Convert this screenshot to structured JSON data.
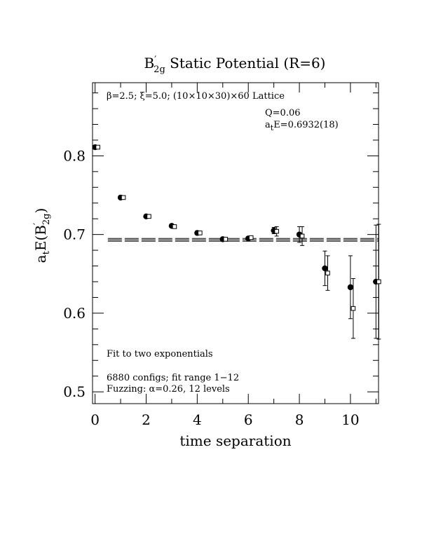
{
  "chart_data": {
    "type": "scatter",
    "title": "B′2g Static Potential (R=6)",
    "title_main": "B",
    "title_sup": "′",
    "title_sub": "2g",
    "title_rest": " Static Potential (R=6)",
    "xlabel": "time separation",
    "ylabel_a": "a",
    "ylabel_t": "t",
    "ylabel_e": "E(B",
    "ylabel_prime": "′",
    "ylabel_sub": "2g",
    "ylabel_close": ")",
    "xlim": [
      -0.1,
      11.1
    ],
    "ylim": [
      0.485,
      0.893
    ],
    "x_ticks": [
      0,
      2,
      4,
      6,
      8,
      10
    ],
    "x_tick_labels": [
      "0",
      "2",
      "4",
      "6",
      "8",
      "10"
    ],
    "y_ticks": [
      0.5,
      0.6,
      0.7,
      0.8
    ],
    "y_tick_labels": [
      "0.5",
      "0.6",
      "0.7",
      "0.8"
    ],
    "annotations": {
      "lattice": "β=2.5; ξ=5.0; (10×10×30)×60 Lattice",
      "q": "Q=0.06",
      "fit_a": "a",
      "fit_t": "t",
      "fit_rest": "E=0.6932(18)",
      "fit_kind": "Fit to two exponentials",
      "configs": "6880 configs; fit range 1−12",
      "fuzzing": "Fuzzing: α=0.26, 12 levels"
    },
    "fit": {
      "value": 0.6932,
      "error": 0.0018,
      "x_range": [
        0.5,
        11.1
      ]
    },
    "series": [
      {
        "marker": "filled-circle",
        "x": [
          0,
          1,
          2,
          3,
          4,
          5,
          6,
          7,
          8,
          9,
          10,
          11
        ],
        "values": [
          0.811,
          0.747,
          0.723,
          0.711,
          0.702,
          0.694,
          0.695,
          0.705,
          0.7,
          0.657,
          0.633,
          0.64
        ],
        "errors": [
          0.001,
          0.002,
          0.002,
          0.002,
          0.002,
          0.002,
          0.003,
          0.004,
          0.01,
          0.022,
          0.04,
          0.072
        ]
      },
      {
        "marker": "open-square",
        "x": [
          0,
          1,
          2,
          3,
          4,
          5,
          6,
          7,
          8,
          9,
          10,
          11
        ],
        "values": [
          0.811,
          0.747,
          0.723,
          0.71,
          0.702,
          0.694,
          0.696,
          0.704,
          0.698,
          0.651,
          0.606,
          0.64
        ],
        "errors": [
          0.001,
          0.002,
          0.002,
          0.002,
          0.002,
          0.002,
          0.003,
          0.006,
          0.012,
          0.022,
          0.038,
          0.073
        ]
      }
    ]
  }
}
